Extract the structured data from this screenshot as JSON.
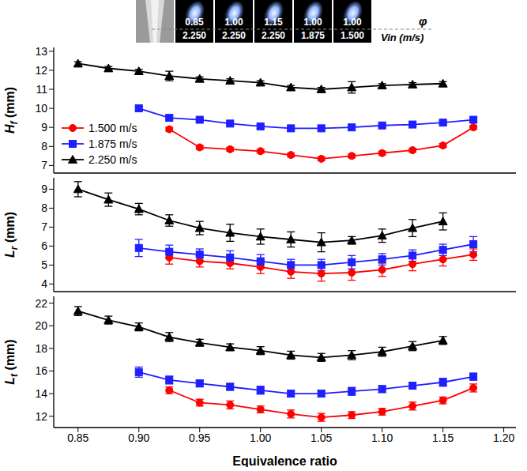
{
  "chart_data": [
    {
      "type": "line",
      "y_label": "Hf (mm)",
      "legend": "left",
      "grid": false,
      "tick_labels": "y",
      "x": [
        0.85,
        0.875,
        0.9,
        0.925,
        0.95,
        0.975,
        1.0,
        1.025,
        1.05,
        1.075,
        1.1,
        1.125,
        1.15,
        1.175
      ],
      "xlim": [
        0.83,
        1.21
      ],
      "xticks": [
        0.85,
        {
          "value": 0.9,
          "label": "0.90"
        },
        0.95,
        {
          "value": 1.0,
          "label": "1.00"
        },
        1.05,
        {
          "value": 1.1,
          "label": "1.10"
        },
        1.15,
        {
          "value": 1.2,
          "label": "1.20"
        }
      ],
      "ylim": [
        6.6,
        13.2
      ],
      "yticks": [
        7,
        8,
        9,
        10,
        11,
        12,
        13
      ],
      "series": [
        {
          "name": "1.500 m/s",
          "color": "#ff0000",
          "marker": "circle",
          "values": [
            null,
            null,
            null,
            8.9,
            7.95,
            7.85,
            7.75,
            7.55,
            7.35,
            7.5,
            7.65,
            7.8,
            8.05,
            9.0
          ],
          "errors": [
            null,
            null,
            null,
            0.1,
            0.1,
            0.1,
            0.1,
            0.1,
            0.1,
            0.1,
            0.1,
            0.1,
            0.1,
            0.1
          ]
        },
        {
          "name": "1.875 m/s",
          "color": "#1f1fff",
          "marker": "square",
          "values": [
            null,
            null,
            10.0,
            9.5,
            9.4,
            9.2,
            9.05,
            8.95,
            8.95,
            9.0,
            9.1,
            9.15,
            9.25,
            9.4
          ],
          "errors": [
            null,
            null,
            0.1,
            0.1,
            0.1,
            0.1,
            0.1,
            0.1,
            0.1,
            0.1,
            0.1,
            0.1,
            0.1,
            0.1
          ]
        },
        {
          "name": "2.250 m/s",
          "color": "#000000",
          "marker": "triangle",
          "values": [
            12.35,
            12.1,
            11.95,
            11.7,
            11.55,
            11.45,
            11.35,
            11.1,
            11.0,
            11.1,
            11.2,
            11.25,
            11.3,
            null
          ],
          "errors": [
            0.1,
            0.1,
            0.1,
            0.25,
            0.1,
            0.1,
            0.1,
            0.1,
            0.1,
            0.3,
            0.1,
            0.1,
            0.1,
            null
          ]
        }
      ]
    },
    {
      "type": "line",
      "y_label": "Lr (mm)",
      "grid": false,
      "tick_labels": "y",
      "x": [
        0.85,
        0.875,
        0.9,
        0.925,
        0.95,
        0.975,
        1.0,
        1.025,
        1.05,
        1.075,
        1.1,
        1.125,
        1.15,
        1.175
      ],
      "xlim": [
        0.83,
        1.21
      ],
      "xticks": [
        0.85,
        {
          "value": 0.9,
          "label": "0.90"
        },
        0.95,
        {
          "value": 1.0,
          "label": "1.00"
        },
        1.05,
        {
          "value": 1.1,
          "label": "1.10"
        },
        1.15,
        {
          "value": 1.2,
          "label": "1.20"
        }
      ],
      "ylim": [
        3.6,
        9.6
      ],
      "yticks": [
        4,
        5,
        6,
        7,
        8,
        9
      ],
      "series": [
        {
          "name": "1.500 m/s",
          "color": "#ff0000",
          "marker": "circle",
          "values": [
            null,
            null,
            null,
            5.4,
            5.2,
            5.1,
            4.9,
            4.65,
            4.55,
            4.6,
            4.75,
            5.05,
            5.3,
            5.55
          ],
          "errors": [
            null,
            null,
            null,
            0.35,
            0.3,
            0.3,
            0.35,
            0.35,
            0.4,
            0.4,
            0.35,
            0.35,
            0.35,
            0.3
          ]
        },
        {
          "name": "1.875 m/s",
          "color": "#1f1fff",
          "marker": "square",
          "values": [
            null,
            null,
            5.9,
            5.7,
            5.55,
            5.4,
            5.2,
            5.0,
            5.0,
            5.15,
            5.3,
            5.5,
            5.8,
            6.1
          ],
          "errors": [
            null,
            null,
            0.45,
            0.35,
            0.3,
            0.35,
            0.35,
            0.3,
            0.3,
            0.35,
            0.3,
            0.3,
            0.3,
            0.4
          ]
        },
        {
          "name": "2.250 m/s",
          "color": "#000000",
          "marker": "triangle",
          "values": [
            9.0,
            8.45,
            7.95,
            7.35,
            6.95,
            6.7,
            6.5,
            6.35,
            6.2,
            6.3,
            6.55,
            6.95,
            7.3,
            null
          ],
          "errors": [
            0.4,
            0.35,
            0.3,
            0.3,
            0.35,
            0.45,
            0.4,
            0.4,
            0.5,
            0.2,
            0.35,
            0.45,
            0.45,
            null
          ]
        }
      ]
    },
    {
      "type": "line",
      "y_label": "Lt (mm)",
      "x_label": "Equivalence ratio",
      "grid": false,
      "x": [
        0.85,
        0.875,
        0.9,
        0.925,
        0.95,
        0.975,
        1.0,
        1.025,
        1.05,
        1.075,
        1.1,
        1.125,
        1.15,
        1.175
      ],
      "xlim": [
        0.83,
        1.21
      ],
      "xticks": [
        0.85,
        {
          "value": 0.9,
          "label": "0.90"
        },
        0.95,
        {
          "value": 1.0,
          "label": "1.00"
        },
        1.05,
        {
          "value": 1.1,
          "label": "1.10"
        },
        1.15,
        {
          "value": 1.2,
          "label": "1.20"
        }
      ],
      "ylim": [
        11,
        22.6
      ],
      "yticks": [
        12,
        14,
        16,
        18,
        20,
        22
      ],
      "series": [
        {
          "name": "1.500 m/s",
          "color": "#ff0000",
          "marker": "circle",
          "values": [
            null,
            null,
            null,
            14.3,
            13.2,
            13.0,
            12.6,
            12.2,
            11.9,
            12.1,
            12.4,
            12.9,
            13.4,
            14.5
          ],
          "errors": [
            null,
            null,
            null,
            0.3,
            0.3,
            0.35,
            0.3,
            0.35,
            0.35,
            0.3,
            0.3,
            0.35,
            0.3,
            0.35
          ]
        },
        {
          "name": "1.875 m/s",
          "color": "#1f1fff",
          "marker": "square",
          "values": [
            null,
            null,
            15.9,
            15.2,
            14.9,
            14.6,
            14.3,
            14.0,
            14.0,
            14.2,
            14.4,
            14.7,
            15.0,
            15.5
          ],
          "errors": [
            null,
            null,
            0.45,
            0.35,
            0.3,
            0.3,
            0.35,
            0.3,
            0.3,
            0.35,
            0.3,
            0.3,
            0.35,
            0.3
          ]
        },
        {
          "name": "2.250 m/s",
          "color": "#000000",
          "marker": "triangle",
          "values": [
            21.3,
            20.5,
            19.9,
            19.0,
            18.5,
            18.1,
            17.8,
            17.4,
            17.2,
            17.4,
            17.7,
            18.2,
            18.7,
            null
          ],
          "errors": [
            0.4,
            0.35,
            0.35,
            0.4,
            0.3,
            0.3,
            0.35,
            0.35,
            0.35,
            0.4,
            0.4,
            0.4,
            0.35,
            null
          ]
        }
      ]
    }
  ],
  "inset": {
    "phi_labels": [
      "0.85",
      "1.00",
      "1.15",
      "1.00",
      "1.00"
    ],
    "vin_labels": [
      "2.250",
      "2.250",
      "2.250",
      "1.875",
      "1.500"
    ],
    "phi_title": "φ",
    "vin_title": "Vin (m/s)"
  }
}
